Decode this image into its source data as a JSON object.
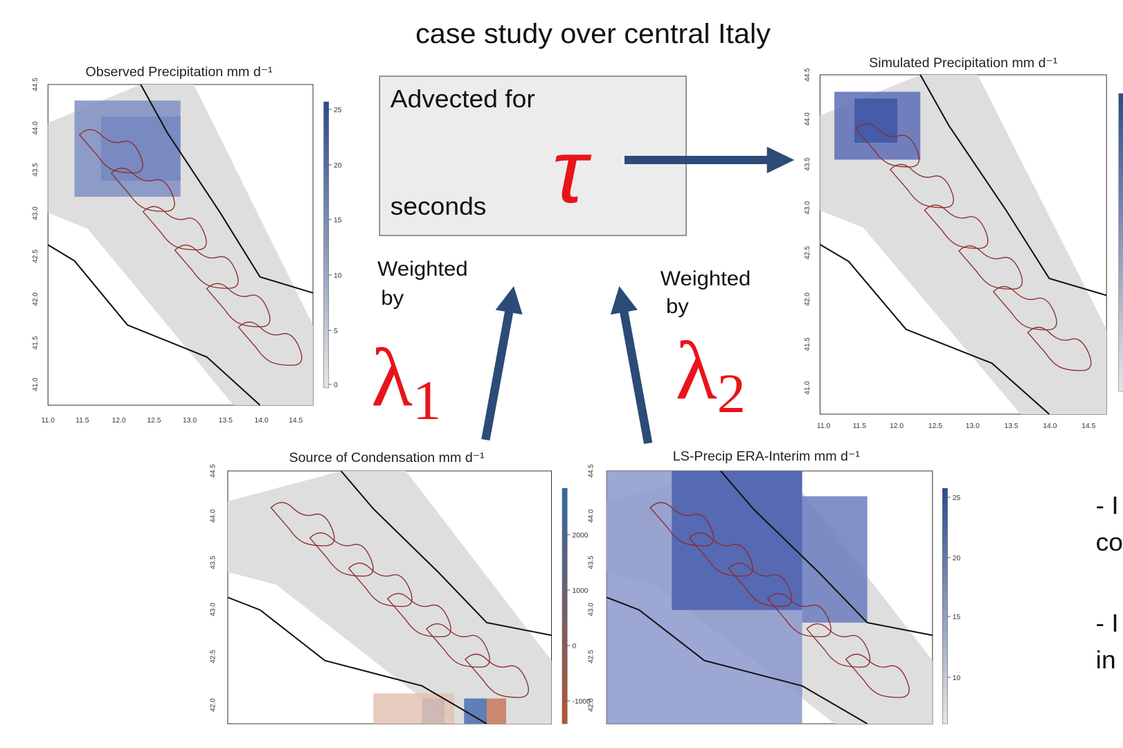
{
  "slide": {
    "title": "case study over central Italy",
    "box": {
      "line1": "Advected for",
      "symbol": "τ",
      "line2": "seconds"
    },
    "left_weight": {
      "line1": "Weighted",
      "line2": "by",
      "symbol": "λ",
      "subscript": "1"
    },
    "right_weight": {
      "line1": "Weighted",
      "line2": "by",
      "symbol": "λ",
      "subscript": "2"
    },
    "side_text": [
      "- I",
      "co",
      "- I",
      "in"
    ]
  },
  "panels": [
    {
      "title": "Observed Precipitation mm d⁻¹",
      "yticks": [
        "44.5",
        "44.0",
        "43.5",
        "43.0",
        "42.5",
        "42.0",
        "41.5",
        "41.0"
      ],
      "xticks": [
        "11.0",
        "11.5",
        "12.0",
        "12.5",
        "13.0",
        "13.5",
        "14.0",
        "14.5"
      ],
      "colorbar_ticks": [
        "25",
        "20",
        "15",
        "10",
        "5",
        "0"
      ]
    },
    {
      "title": "Simulated Precipitation mm d⁻¹",
      "yticks": [
        "44.5",
        "44.0",
        "43.5",
        "43.0",
        "42.5",
        "42.0",
        "41.5",
        "41.0"
      ],
      "xticks": [
        "11.0",
        "11.5",
        "12.0",
        "12.5",
        "13.0",
        "13.5",
        "14.0",
        "14.5"
      ],
      "colorbar_ticks": []
    },
    {
      "title": "Source of Condensation mm d⁻¹",
      "yticks": [
        "44.5",
        "44.0",
        "43.5",
        "43.0",
        "42.5",
        "42.0"
      ],
      "xticks": [],
      "colorbar_ticks": [
        "2000",
        "1000",
        "0",
        "-1000"
      ]
    },
    {
      "title": "LS-Precip ERA-Interim mm d⁻¹",
      "yticks": [
        "44.5",
        "44.0",
        "43.5",
        "43.0",
        "42.5",
        "42.0"
      ],
      "xticks": [],
      "colorbar_ticks": [
        "25",
        "20",
        "15",
        "10"
      ]
    }
  ]
}
